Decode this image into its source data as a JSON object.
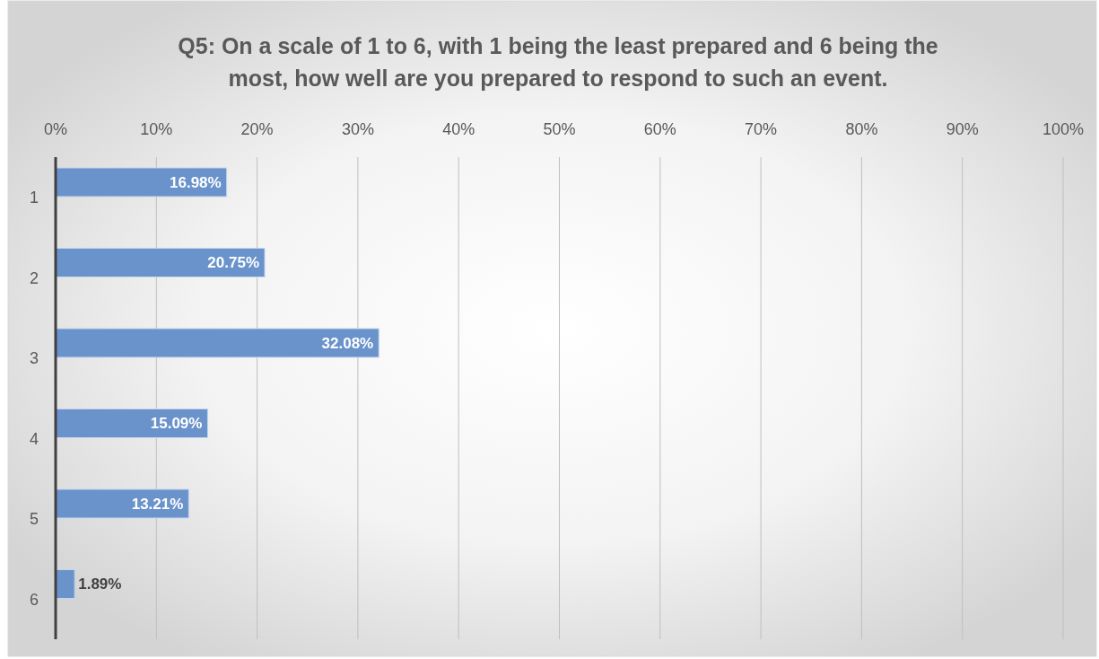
{
  "chart_data": {
    "type": "bar",
    "orientation": "horizontal",
    "title": "Q5: On a scale of 1 to 6, with 1 being the least prepared and 6 being the most, how well are you prepared to respond to such an event.",
    "categories": [
      "1",
      "2",
      "3",
      "4",
      "5",
      "6"
    ],
    "values": [
      16.98,
      20.75,
      32.08,
      15.09,
      13.21,
      1.89
    ],
    "value_labels": [
      "16.98%",
      "20.75%",
      "32.08%",
      "15.09%",
      "13.21%",
      "1.89%"
    ],
    "color": "#6a93cb",
    "xlim": [
      0,
      100
    ],
    "xticks": [
      {
        "value": 0,
        "label": "0%"
      },
      {
        "value": 10,
        "label": "10%"
      },
      {
        "value": 20,
        "label": "20%"
      },
      {
        "value": 30,
        "label": "30%"
      },
      {
        "value": 40,
        "label": "40%"
      },
      {
        "value": 50,
        "label": "50%"
      },
      {
        "value": 60,
        "label": "60%"
      },
      {
        "value": 70,
        "label": "70%"
      },
      {
        "value": 80,
        "label": "80%"
      },
      {
        "value": 90,
        "label": "90%"
      },
      {
        "value": 100,
        "label": "100%"
      }
    ],
    "grid": "x"
  }
}
